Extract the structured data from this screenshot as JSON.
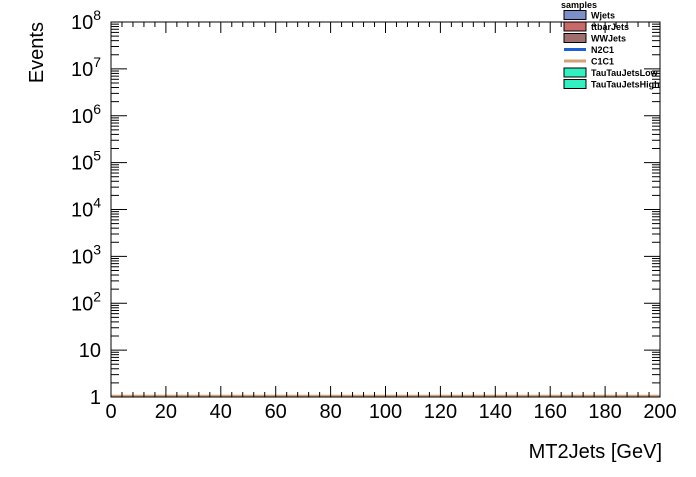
{
  "chart_data": {
    "type": "line",
    "title": "",
    "xlabel": "MT2Jets [GeV]",
    "ylabel": "Events",
    "xlim": [
      0,
      200
    ],
    "ylim": [
      1,
      100000000
    ],
    "yscale": "log",
    "grid": false,
    "legend_position": "top-right",
    "legend_title": "samples",
    "x_ticks": [
      0,
      20,
      40,
      60,
      80,
      100,
      120,
      140,
      160,
      180,
      200
    ],
    "x_tick_labels": [
      "0",
      "20",
      "40",
      "60",
      "80",
      "100",
      "120",
      "140",
      "160",
      "180",
      "200"
    ],
    "y_ticks": [
      1,
      10,
      100,
      1000,
      10000,
      100000,
      1000000,
      10000000,
      100000000
    ],
    "y_tick_labels": [
      {
        "base": "1",
        "exp": ""
      },
      {
        "base": "10",
        "exp": ""
      },
      {
        "base": "10",
        "exp": "2"
      },
      {
        "base": "10",
        "exp": "3"
      },
      {
        "base": "10",
        "exp": "4"
      },
      {
        "base": "10",
        "exp": "5"
      },
      {
        "base": "10",
        "exp": "6"
      },
      {
        "base": "10",
        "exp": "7"
      },
      {
        "base": "10",
        "exp": "8"
      }
    ],
    "series": [
      {
        "name": "Wjets",
        "kind": "fill",
        "color": "#7b8fc9",
        "x": [
          0,
          200
        ],
        "y": [
          1,
          1
        ]
      },
      {
        "name": "ttbarJets",
        "kind": "fill",
        "color": "#c96a6a",
        "x": [
          0,
          200
        ],
        "y": [
          1,
          1
        ]
      },
      {
        "name": "WWJets",
        "kind": "fill",
        "color": "#a07070",
        "x": [
          0,
          200
        ],
        "y": [
          1,
          1
        ]
      },
      {
        "name": "N2C1",
        "kind": "line",
        "color": "#1f5fd6",
        "x": [
          0,
          200
        ],
        "y": [
          1,
          1
        ]
      },
      {
        "name": "C1C1",
        "kind": "line",
        "color": "#d4a27a",
        "x": [
          0,
          200
        ],
        "y": [
          1,
          1
        ]
      },
      {
        "name": "TauTauJetsLow",
        "kind": "fill",
        "color": "#33f0c0",
        "x": [
          0,
          200
        ],
        "y": [
          1,
          1
        ]
      },
      {
        "name": "TauTauJetsHigh",
        "kind": "fill",
        "color": "#33f0c0",
        "x": [
          0,
          200
        ],
        "y": [
          1,
          1
        ]
      }
    ]
  }
}
